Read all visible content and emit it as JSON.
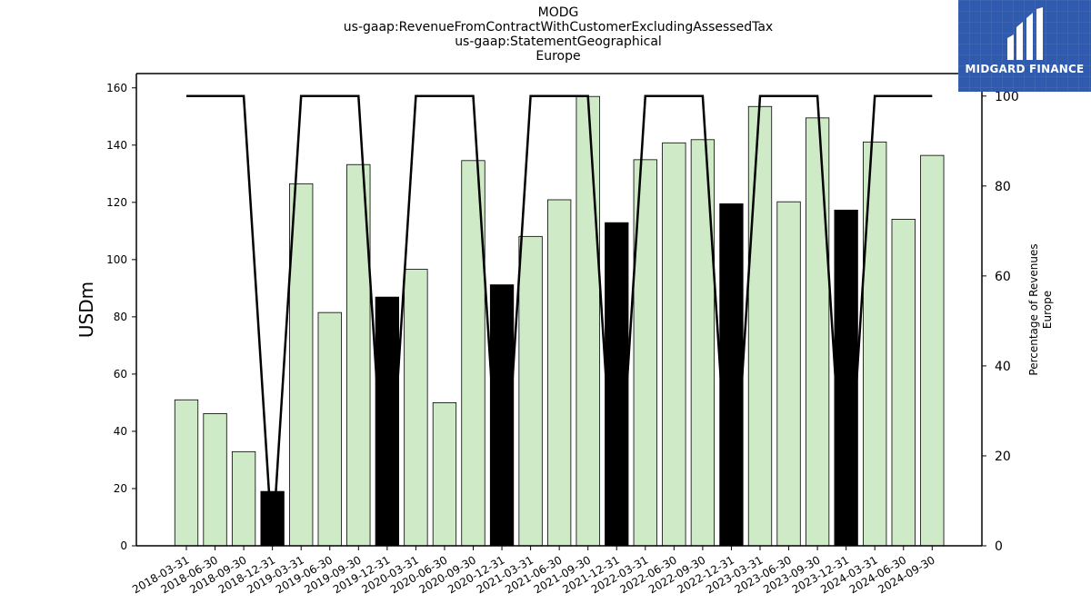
{
  "header": {
    "title_lines": [
      "MODG",
      "us-gaap:RevenueFromContractWithCustomerExcludingAssessedTax",
      "us-gaap:StatementGeographical",
      "Europe"
    ]
  },
  "logo": {
    "text": "MIDGARD FINANCE",
    "icon": "midgard-logo-icon",
    "background": "#2f5aae"
  },
  "chart_data": {
    "type": "bar",
    "categories": [
      "2018-03-31",
      "2018-06-30",
      "2018-09-30",
      "2018-12-31",
      "2019-03-31",
      "2019-06-30",
      "2019-09-30",
      "2019-12-31",
      "2020-03-31",
      "2020-06-30",
      "2020-09-30",
      "2020-12-31",
      "2021-03-31",
      "2021-06-30",
      "2021-09-30",
      "2021-12-31",
      "2022-03-31",
      "2022-06-30",
      "2022-09-30",
      "2022-12-31",
      "2023-03-31",
      "2023-06-30",
      "2023-09-30",
      "2023-12-31",
      "2024-03-31",
      "2024-06-30",
      "2024-09-30"
    ],
    "values": [
      51,
      46.2,
      32.9,
      19,
      126.5,
      81.5,
      133.2,
      86.9,
      96.6,
      50,
      134.6,
      91.2,
      108.1,
      120.9,
      157,
      112.9,
      134.9,
      140.8,
      141.9,
      119.5,
      153.5,
      120.2,
      149.5,
      117.3,
      141.1,
      114.1,
      136.4
    ],
    "bar_highlight": [
      false,
      false,
      false,
      true,
      false,
      false,
      false,
      true,
      false,
      false,
      false,
      true,
      false,
      false,
      false,
      true,
      false,
      false,
      false,
      true,
      false,
      false,
      false,
      true,
      false,
      false,
      false
    ],
    "bar_colors": {
      "normal": "#cfeac6",
      "highlight": "#000000",
      "edge": "#000000"
    },
    "line_series": {
      "axis": "right",
      "values": [
        100,
        100,
        100,
        0,
        100,
        100,
        100,
        0,
        100,
        100,
        100,
        0,
        100,
        100,
        100,
        0,
        100,
        100,
        100,
        0,
        100,
        100,
        100,
        0,
        100,
        100,
        100
      ],
      "color": "#000000"
    },
    "ylabel": "USDm",
    "y2label_lines": [
      "Percentage of Revenues",
      "Europe"
    ],
    "ylim": [
      0,
      165
    ],
    "yticks": [
      0,
      20,
      40,
      60,
      80,
      100,
      120,
      140,
      160
    ],
    "y2lim": [
      0,
      105
    ],
    "y2ticks": [
      0,
      20,
      40,
      60,
      80,
      100
    ],
    "grid": false,
    "legend": "none"
  }
}
